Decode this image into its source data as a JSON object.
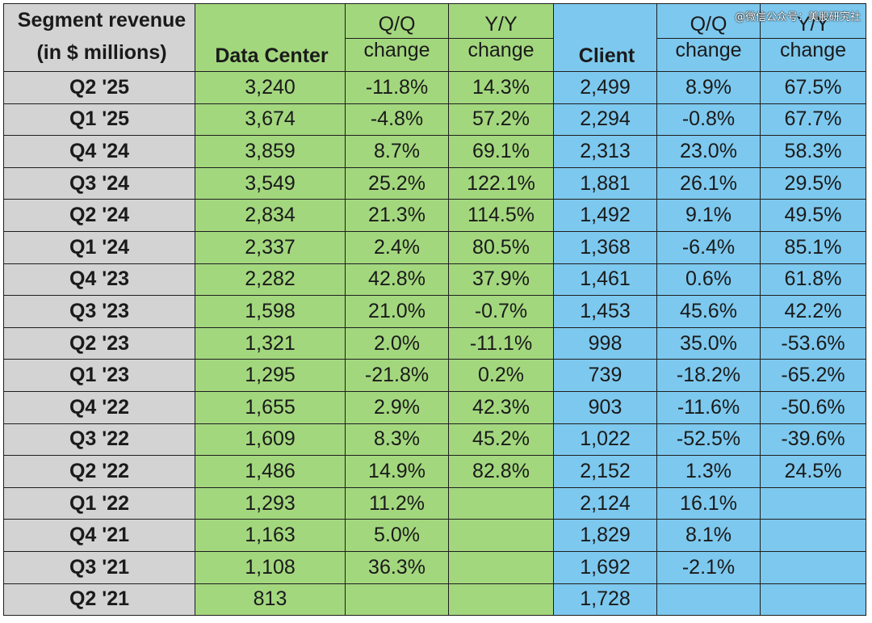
{
  "watermark": "@微信公众号：美股研究社",
  "chart_data": {
    "type": "table",
    "header": {
      "label_line1": "Segment revenue",
      "label_line2": "(in $ millions)",
      "data_center": "Data Center",
      "client": "Client",
      "qq_top": "Q/Q",
      "yy_top": "Y/Y",
      "change": "change"
    },
    "rows": [
      {
        "quarter": "Q2 '25",
        "dc": "3,240",
        "dc_qq": "-11.8%",
        "dc_yy": "14.3%",
        "cl": "2,499",
        "cl_qq": "8.9%",
        "cl_yy": "67.5%"
      },
      {
        "quarter": "Q1 '25",
        "dc": "3,674",
        "dc_qq": "-4.8%",
        "dc_yy": "57.2%",
        "cl": "2,294",
        "cl_qq": "-0.8%",
        "cl_yy": "67.7%"
      },
      {
        "quarter": "Q4 '24",
        "dc": "3,859",
        "dc_qq": "8.7%",
        "dc_yy": "69.1%",
        "cl": "2,313",
        "cl_qq": "23.0%",
        "cl_yy": "58.3%"
      },
      {
        "quarter": "Q3 '24",
        "dc": "3,549",
        "dc_qq": "25.2%",
        "dc_yy": "122.1%",
        "cl": "1,881",
        "cl_qq": "26.1%",
        "cl_yy": "29.5%"
      },
      {
        "quarter": "Q2 '24",
        "dc": "2,834",
        "dc_qq": "21.3%",
        "dc_yy": "114.5%",
        "cl": "1,492",
        "cl_qq": "9.1%",
        "cl_yy": "49.5%"
      },
      {
        "quarter": "Q1 '24",
        "dc": "2,337",
        "dc_qq": "2.4%",
        "dc_yy": "80.5%",
        "cl": "1,368",
        "cl_qq": "-6.4%",
        "cl_yy": "85.1%"
      },
      {
        "quarter": "Q4 '23",
        "dc": "2,282",
        "dc_qq": "42.8%",
        "dc_yy": "37.9%",
        "cl": "1,461",
        "cl_qq": "0.6%",
        "cl_yy": "61.8%"
      },
      {
        "quarter": "Q3 '23",
        "dc": "1,598",
        "dc_qq": "21.0%",
        "dc_yy": "-0.7%",
        "cl": "1,453",
        "cl_qq": "45.6%",
        "cl_yy": "42.2%"
      },
      {
        "quarter": "Q2 '23",
        "dc": "1,321",
        "dc_qq": "2.0%",
        "dc_yy": "-11.1%",
        "cl": "998",
        "cl_qq": "35.0%",
        "cl_yy": "-53.6%"
      },
      {
        "quarter": "Q1 '23",
        "dc": "1,295",
        "dc_qq": "-21.8%",
        "dc_yy": "0.2%",
        "cl": "739",
        "cl_qq": "-18.2%",
        "cl_yy": "-65.2%"
      },
      {
        "quarter": "Q4 '22",
        "dc": "1,655",
        "dc_qq": "2.9%",
        "dc_yy": "42.3%",
        "cl": "903",
        "cl_qq": "-11.6%",
        "cl_yy": "-50.6%"
      },
      {
        "quarter": "Q3 '22",
        "dc": "1,609",
        "dc_qq": "8.3%",
        "dc_yy": "45.2%",
        "cl": "1,022",
        "cl_qq": "-52.5%",
        "cl_yy": "-39.6%"
      },
      {
        "quarter": "Q2 '22",
        "dc": "1,486",
        "dc_qq": "14.9%",
        "dc_yy": "82.8%",
        "cl": "2,152",
        "cl_qq": "1.3%",
        "cl_yy": "24.5%"
      },
      {
        "quarter": "Q1 '22",
        "dc": "1,293",
        "dc_qq": "11.2%",
        "dc_yy": "",
        "cl": "2,124",
        "cl_qq": "16.1%",
        "cl_yy": ""
      },
      {
        "quarter": "Q4 '21",
        "dc": "1,163",
        "dc_qq": "5.0%",
        "dc_yy": "",
        "cl": "1,829",
        "cl_qq": "8.1%",
        "cl_yy": ""
      },
      {
        "quarter": "Q3 '21",
        "dc": "1,108",
        "dc_qq": "36.3%",
        "dc_yy": "",
        "cl": "1,692",
        "cl_qq": "-2.1%",
        "cl_yy": ""
      },
      {
        "quarter": "Q2 '21",
        "dc": "813",
        "dc_qq": "",
        "dc_yy": "",
        "cl": "1,728",
        "cl_qq": "",
        "cl_yy": ""
      }
    ],
    "colors": {
      "label_bg": "#d3d3d3",
      "data_center_bg": "#a3d77e",
      "client_bg": "#7dc8ee"
    }
  }
}
